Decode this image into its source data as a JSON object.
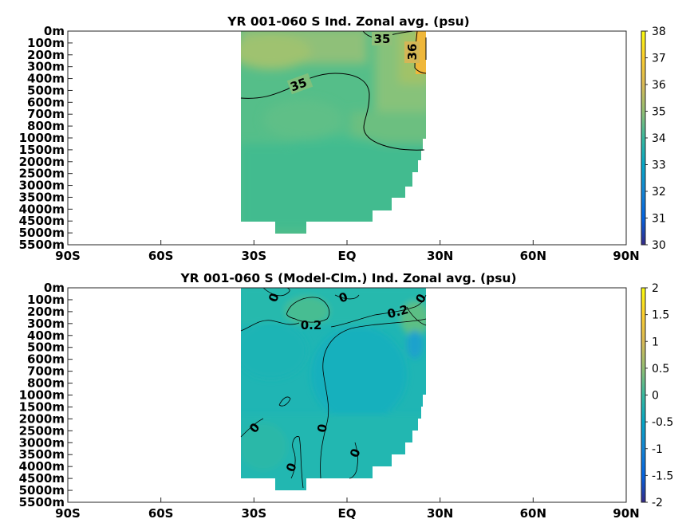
{
  "chart_data": [
    {
      "type": "heatmap",
      "title": "YR 001-060 S Ind. Zonal avg. (psu)",
      "x_ticks": [
        "90S",
        "60S",
        "30S",
        "EQ",
        "30N",
        "60N",
        "90N"
      ],
      "xlim": [
        -90,
        90
      ],
      "y_ticks": [
        "0m",
        "100m",
        "200m",
        "300m",
        "400m",
        "500m",
        "600m",
        "700m",
        "800m",
        "1000m",
        "1500m",
        "2000m",
        "2500m",
        "3000m",
        "3500m",
        "4000m",
        "4500m",
        "5000m",
        "5500m"
      ],
      "colorbar": {
        "min": 30,
        "max": 38,
        "ticks": [
          "30",
          "31",
          "32",
          "33",
          "34",
          "35",
          "36",
          "37",
          "38"
        ],
        "colormap": "parula"
      },
      "data_extent_lat": [
        -35,
        25
      ],
      "contour_labels": [
        {
          "text": "35",
          "lat": 4,
          "depth": "100m"
        },
        {
          "text": "36",
          "lat": 23.5,
          "depth": "200m"
        },
        {
          "text": "35",
          "lat": -15,
          "depth": "500m"
        }
      ]
    },
    {
      "type": "heatmap",
      "title": "YR 001-060 S (Model-Clm.) Ind. Zonal avg. (psu)",
      "x_ticks": [
        "90S",
        "60S",
        "30S",
        "EQ",
        "30N",
        "60N",
        "90N"
      ],
      "xlim": [
        -90,
        90
      ],
      "y_ticks": [
        "0m",
        "100m",
        "200m",
        "300m",
        "400m",
        "500m",
        "600m",
        "700m",
        "800m",
        "1000m",
        "1500m",
        "2000m",
        "2500m",
        "3000m",
        "3500m",
        "4000m",
        "4500m",
        "5000m",
        "5500m"
      ],
      "colorbar": {
        "min": -2,
        "max": 2,
        "ticks": [
          "-2",
          "-1.5",
          "-1",
          "-0.5",
          "0",
          "0.5",
          "1",
          "1.5",
          "2"
        ],
        "colormap": "parula"
      },
      "data_extent_lat": [
        -35,
        25
      ],
      "contour_labels": [
        {
          "text": "0",
          "lat": -24,
          "depth": "100m"
        },
        {
          "text": "0",
          "lat": -1,
          "depth": "100m"
        },
        {
          "text": "0.2",
          "lat": -13,
          "depth": "300m"
        },
        {
          "text": "0.2",
          "lat": 15,
          "depth": "200m"
        },
        {
          "text": "0",
          "lat": 24,
          "depth": "100m"
        },
        {
          "text": "0",
          "lat": -31,
          "depth": "2500m"
        },
        {
          "text": "0",
          "lat": -7.5,
          "depth": "2500m"
        },
        {
          "text": "0",
          "lat": -18,
          "depth": "4000m"
        },
        {
          "text": "0",
          "lat": 3,
          "depth": "3500m"
        }
      ]
    }
  ]
}
